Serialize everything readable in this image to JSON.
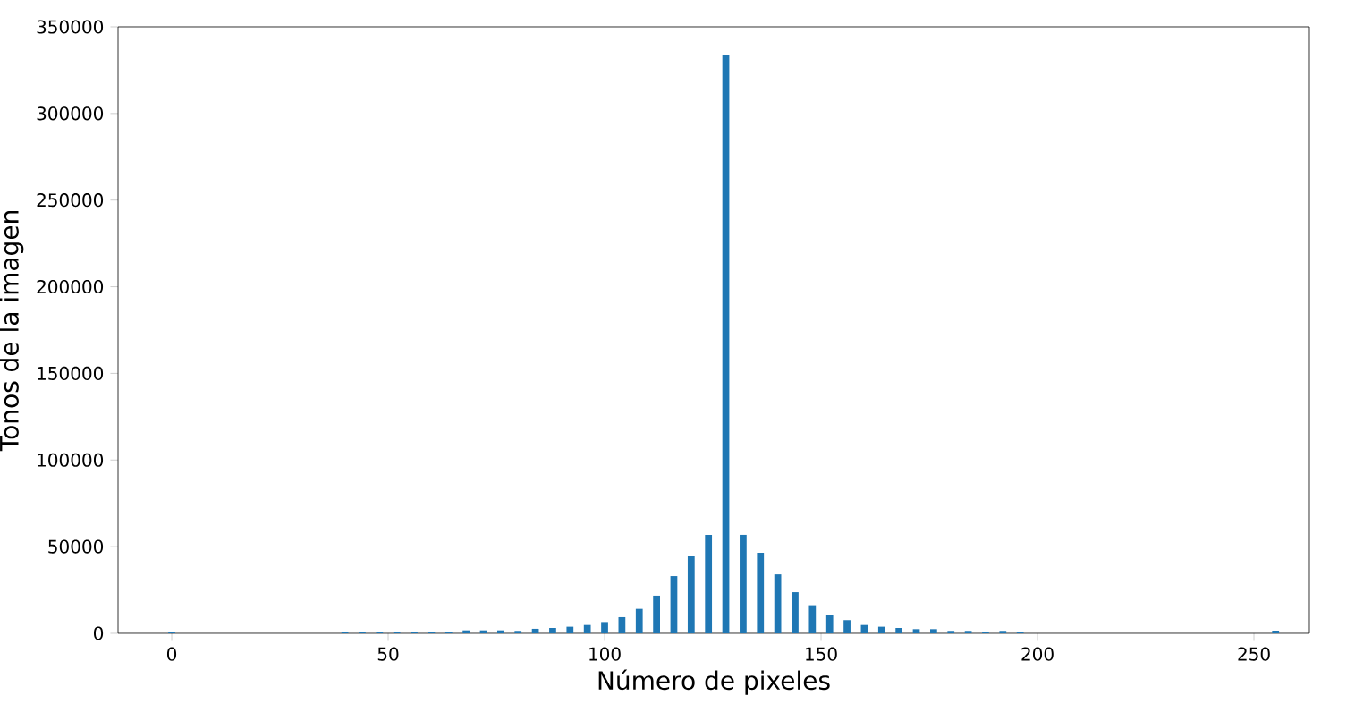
{
  "chart_data": {
    "type": "bar",
    "xlabel": "Número de pixeles",
    "ylabel": "Tonos de la imagen",
    "x": [
      0,
      40,
      44,
      48,
      52,
      56,
      60,
      64,
      68,
      72,
      76,
      80,
      84,
      88,
      92,
      96,
      100,
      104,
      108,
      112,
      116,
      120,
      124,
      128,
      132,
      136,
      140,
      144,
      148,
      152,
      156,
      160,
      164,
      168,
      172,
      176,
      180,
      184,
      188,
      192,
      196,
      255
    ],
    "values": [
      1000,
      700,
      700,
      1000,
      1000,
      1000,
      1000,
      1000,
      1700,
      1700,
      1700,
      1400,
      2600,
      3100,
      3800,
      4800,
      6500,
      9300,
      14100,
      21700,
      33000,
      44400,
      56800,
      334000,
      56800,
      46400,
      34000,
      23700,
      16200,
      10300,
      7600,
      4800,
      3800,
      3100,
      2400,
      2400,
      1400,
      1400,
      1000,
      1400,
      1000,
      1500
    ],
    "color": "#1f77b4",
    "xlim": [
      -12.4,
      262.8
    ],
    "ylim": [
      0,
      350000
    ],
    "xticks": [
      0,
      50,
      100,
      150,
      200,
      250
    ],
    "yticks": [
      0,
      50000,
      100000,
      150000,
      200000,
      250000,
      300000,
      350000
    ],
    "grid": false
  }
}
